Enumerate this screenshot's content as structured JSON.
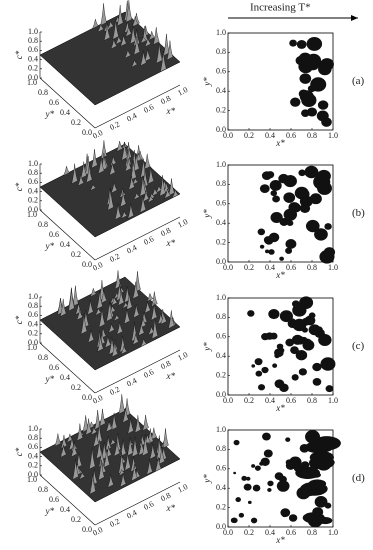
{
  "header": {
    "label": "Increasing T*"
  },
  "panels": [
    {
      "label": "(a)",
      "surface": {
        "c_label": "c*",
        "c_ticks": [
          "0.0",
          "0.2",
          "0.4",
          "0.6",
          "0.8",
          "1.0"
        ],
        "y_label": "y*",
        "y_ticks": [
          "1.0",
          "0.8",
          "0.6",
          "0.4",
          "0.2",
          "0.0"
        ],
        "x_label": "x*",
        "x_ticks": [
          "0.0",
          "0.2",
          "0.4",
          "0.6",
          "0.8",
          "1.0"
        ]
      },
      "map": {
        "x_label": "x*",
        "x_ticks": [
          "0.0",
          "0.2",
          "0.4",
          "0.6",
          "0.8",
          "1.0"
        ],
        "y_label": "y*",
        "y_ticks": [
          "0.0",
          "0.2",
          "0.4",
          "0.6",
          "0.8",
          "1.0"
        ]
      }
    },
    {
      "label": "(b)",
      "surface": {
        "c_label": "c*",
        "c_ticks": [
          "0.0",
          "0.2",
          "0.4",
          "0.6",
          "0.8",
          "1.0"
        ],
        "y_label": "y*",
        "y_ticks": [
          "1.0",
          "0.8",
          "0.6",
          "0.4",
          "0.2",
          "0.0"
        ],
        "x_label": "x*",
        "x_ticks": [
          "0.0",
          "0.2",
          "0.4",
          "0.6",
          "0.8",
          "1.0"
        ]
      },
      "map": {
        "x_label": "x*",
        "x_ticks": [
          "0.0",
          "0.2",
          "0.4",
          "0.6",
          "0.8",
          "1.0"
        ],
        "y_label": "y*",
        "y_ticks": [
          "0.0",
          "0.2",
          "0.4",
          "0.6",
          "0.8",
          "1.0"
        ]
      }
    },
    {
      "label": "(c)",
      "surface": {
        "c_label": "c*",
        "c_ticks": [
          "0.0",
          "0.2",
          "0.4",
          "0.6",
          "0.8",
          "1.0"
        ],
        "y_label": "y*",
        "y_ticks": [
          "1.0",
          "0.8",
          "0.6",
          "0.4",
          "0.2",
          "0.0"
        ],
        "x_label": "x*",
        "x_ticks": [
          "0.0",
          "0.2",
          "0.4",
          "0.6",
          "0.8",
          "1.0"
        ]
      },
      "map": {
        "x_label": "x*",
        "x_ticks": [
          "0.0",
          "0.2",
          "0.4",
          "0.6",
          "0.8",
          "1.0"
        ],
        "y_label": "y*",
        "y_ticks": [
          "0.0",
          "0.2",
          "0.4",
          "0.6",
          "0.8",
          "1.0"
        ]
      }
    },
    {
      "label": "(d)",
      "surface": {
        "c_label": "c*",
        "c_ticks": [
          "0.0",
          "0.2",
          "0.4",
          "0.6",
          "0.8",
          "1.0"
        ],
        "y_label": "y*",
        "y_ticks": [
          "1.0",
          "0.8",
          "0.6",
          "0.4",
          "0.2",
          "0.0"
        ],
        "x_label": "x*",
        "x_ticks": [
          "0.0",
          "0.2",
          "0.4",
          "0.6",
          "0.8",
          "1.0"
        ]
      },
      "map": {
        "x_label": "x*",
        "x_ticks": [
          "0.0",
          "0.2",
          "0.4",
          "0.6",
          "0.8",
          "1.0"
        ],
        "y_label": "y*",
        "y_ticks": [
          "0.0",
          "0.2",
          "0.4",
          "0.6",
          "0.8",
          "1.0"
        ]
      }
    }
  ]
}
